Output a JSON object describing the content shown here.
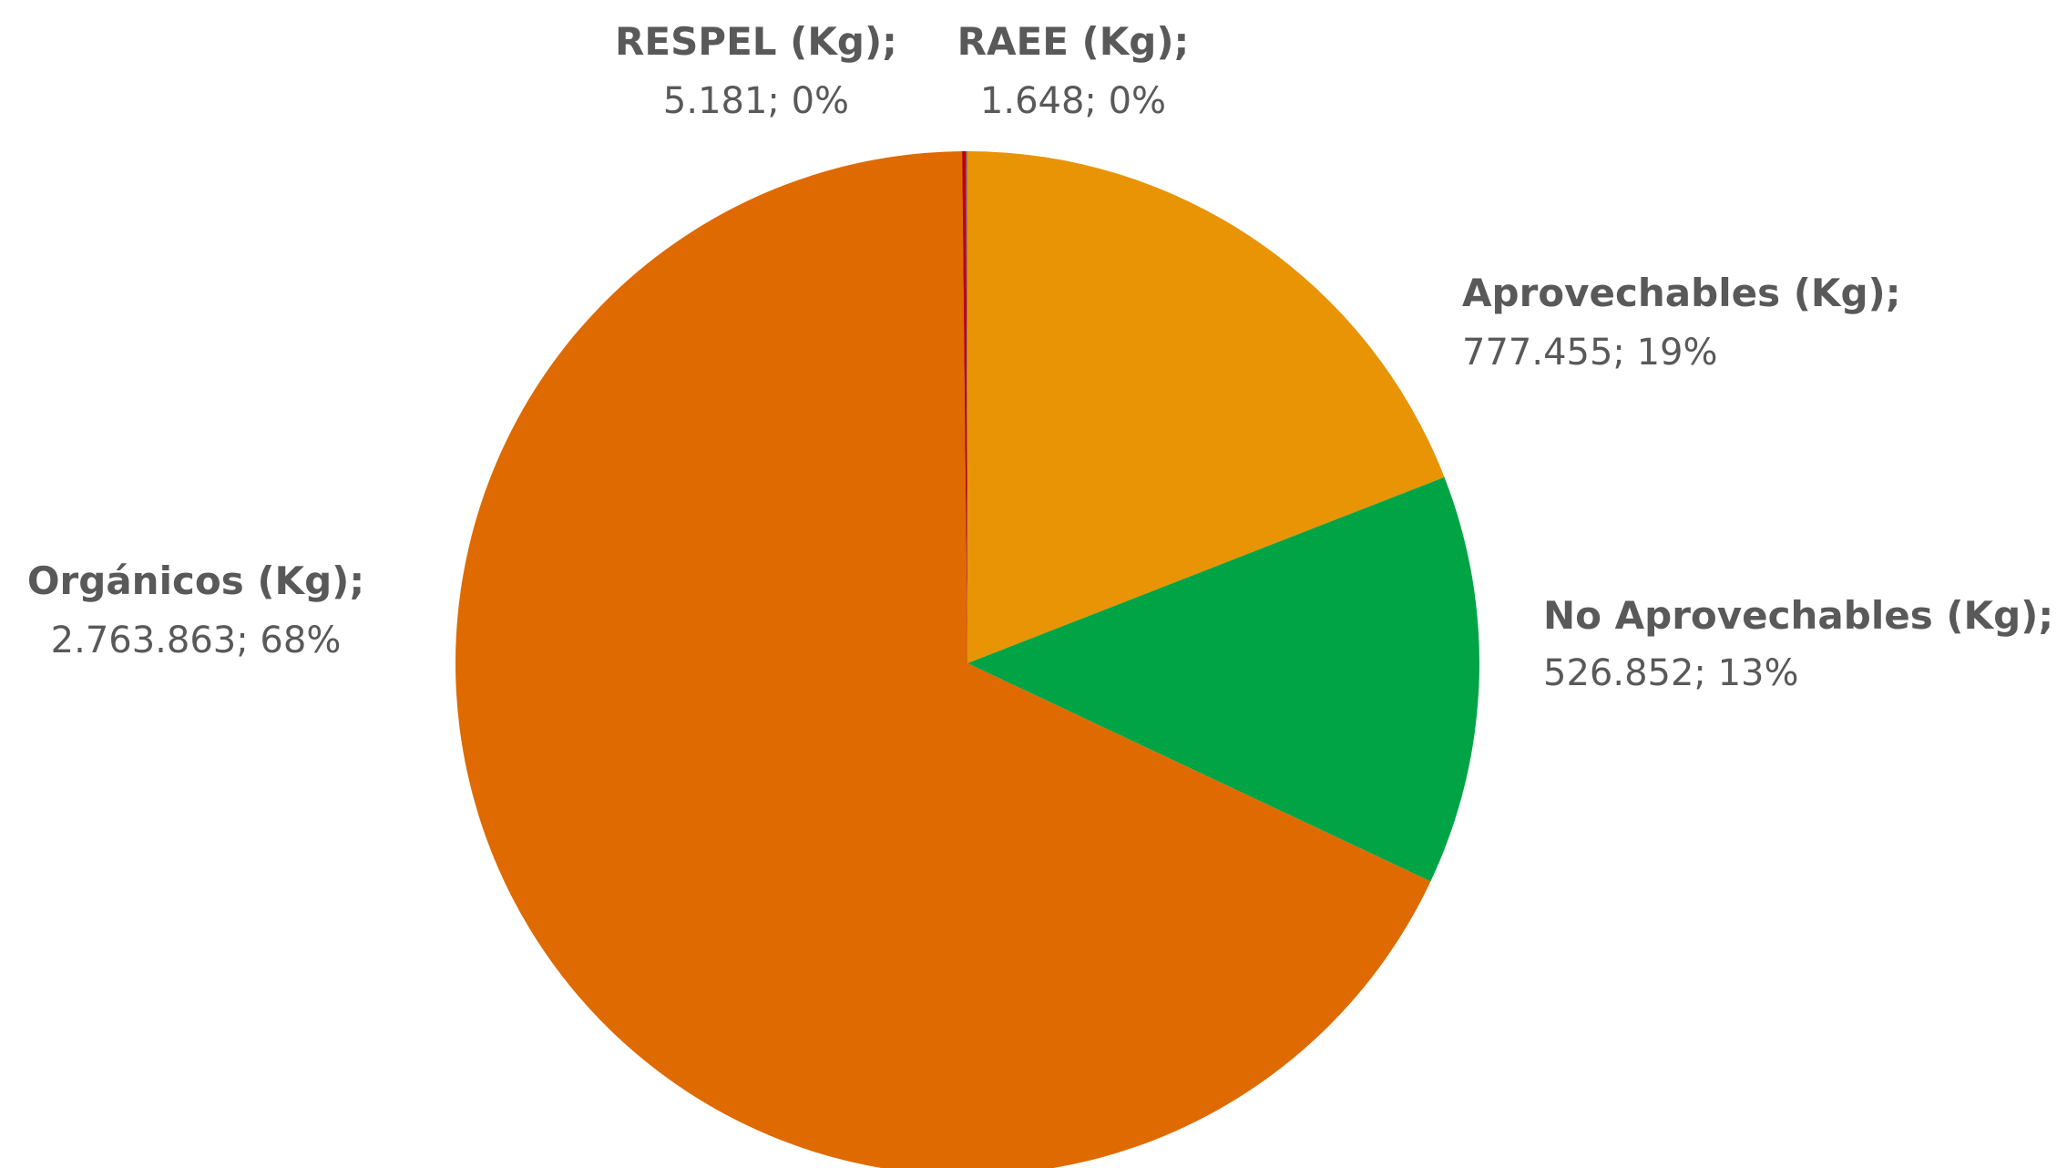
{
  "chart_data": {
    "type": "pie",
    "title": "",
    "slices": [
      {
        "label": "Aprovechables (Kg);",
        "value": 777455,
        "value_text": "777.455; 19%",
        "percent": 19,
        "color": "#E89404"
      },
      {
        "label": "No Aprovechables (Kg);",
        "value": 526852,
        "value_text": "526.852; 13%",
        "percent": 13,
        "color": "#01A445"
      },
      {
        "label": "Orgánicos (Kg);",
        "value": 2763863,
        "value_text": "2.763.863; 68%",
        "percent": 68,
        "color": "#DE6A01"
      },
      {
        "label": "RESPEL (Kg);",
        "value": 5181,
        "value_text": "5.181; 0%",
        "percent": 0,
        "color": "#C00000"
      },
      {
        "label": "RAEE (Kg);",
        "value": 1648,
        "value_text": "1.648; 0%",
        "percent": 0,
        "color": "#7F7F7F"
      }
    ],
    "start_angle": "12 o'clock",
    "direction": "clockwise",
    "legend": "none",
    "data_labels": "outside"
  }
}
